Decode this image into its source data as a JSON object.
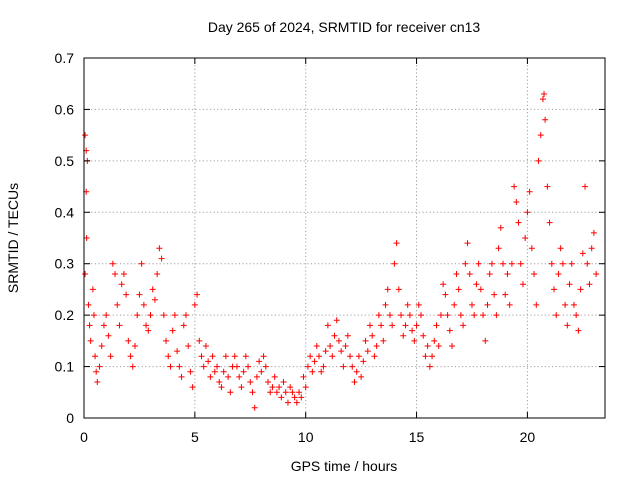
{
  "chart_data": {
    "type": "scatter",
    "title": "Day 265 of 2024, SRMTID for receiver cn13",
    "xlabel": "GPS time / hours",
    "ylabel": "SRMTID / TECUs",
    "xlim": [
      0,
      23.5
    ],
    "ylim": [
      0,
      0.7
    ],
    "xticks": [
      0,
      5,
      10,
      15,
      20
    ],
    "xtick_labels": [
      "0",
      "5",
      "10",
      "15",
      "20"
    ],
    "yticks": [
      0,
      0.1,
      0.2,
      0.3,
      0.4,
      0.5,
      0.6,
      0.7
    ],
    "ytick_labels": [
      "0",
      "0.1",
      "0.2",
      "0.3",
      "0.4",
      "0.5",
      "0.6",
      "0.7"
    ],
    "grid": true,
    "marker": "+",
    "series": [
      {
        "name": "SRMTID",
        "color": "#ff0000",
        "points": [
          [
            0.05,
            0.55
          ],
          [
            0.1,
            0.52
          ],
          [
            0.15,
            0.5
          ],
          [
            0.1,
            0.44
          ],
          [
            0.12,
            0.35
          ],
          [
            0.05,
            0.28
          ],
          [
            0.2,
            0.22
          ],
          [
            0.25,
            0.18
          ],
          [
            0.3,
            0.15
          ],
          [
            0.4,
            0.25
          ],
          [
            0.45,
            0.2
          ],
          [
            0.5,
            0.12
          ],
          [
            0.55,
            0.09
          ],
          [
            0.6,
            0.07
          ],
          [
            0.7,
            0.1
          ],
          [
            0.8,
            0.14
          ],
          [
            0.9,
            0.18
          ],
          [
            1.0,
            0.2
          ],
          [
            1.1,
            0.16
          ],
          [
            1.2,
            0.12
          ],
          [
            1.3,
            0.3
          ],
          [
            1.4,
            0.28
          ],
          [
            1.5,
            0.22
          ],
          [
            1.6,
            0.18
          ],
          [
            1.7,
            0.26
          ],
          [
            1.8,
            0.28
          ],
          [
            1.9,
            0.24
          ],
          [
            2.0,
            0.15
          ],
          [
            2.1,
            0.12
          ],
          [
            2.2,
            0.1
          ],
          [
            2.3,
            0.14
          ],
          [
            2.4,
            0.2
          ],
          [
            2.5,
            0.24
          ],
          [
            2.6,
            0.3
          ],
          [
            2.7,
            0.22
          ],
          [
            2.8,
            0.18
          ],
          [
            2.9,
            0.17
          ],
          [
            3.0,
            0.2
          ],
          [
            3.1,
            0.25
          ],
          [
            3.2,
            0.23
          ],
          [
            3.3,
            0.28
          ],
          [
            3.4,
            0.33
          ],
          [
            3.5,
            0.31
          ],
          [
            3.6,
            0.2
          ],
          [
            3.7,
            0.15
          ],
          [
            3.8,
            0.12
          ],
          [
            3.9,
            0.1
          ],
          [
            4.0,
            0.17
          ],
          [
            4.1,
            0.2
          ],
          [
            4.2,
            0.13
          ],
          [
            4.3,
            0.1
          ],
          [
            4.4,
            0.08
          ],
          [
            4.5,
            0.18
          ],
          [
            4.6,
            0.2
          ],
          [
            4.7,
            0.14
          ],
          [
            4.8,
            0.09
          ],
          [
            4.9,
            0.06
          ],
          [
            5.0,
            0.22
          ],
          [
            5.1,
            0.24
          ],
          [
            5.2,
            0.15
          ],
          [
            5.3,
            0.12
          ],
          [
            5.4,
            0.1
          ],
          [
            5.5,
            0.14
          ],
          [
            5.6,
            0.11
          ],
          [
            5.7,
            0.08
          ],
          [
            5.8,
            0.12
          ],
          [
            5.9,
            0.09
          ],
          [
            6.0,
            0.1
          ],
          [
            6.1,
            0.07
          ],
          [
            6.2,
            0.06
          ],
          [
            6.3,
            0.09
          ],
          [
            6.4,
            0.12
          ],
          [
            6.5,
            0.08
          ],
          [
            6.6,
            0.05
          ],
          [
            6.7,
            0.1
          ],
          [
            6.8,
            0.12
          ],
          [
            6.9,
            0.1
          ],
          [
            7.0,
            0.08
          ],
          [
            7.1,
            0.06
          ],
          [
            7.2,
            0.09
          ],
          [
            7.3,
            0.12
          ],
          [
            7.4,
            0.1
          ],
          [
            7.5,
            0.07
          ],
          [
            7.6,
            0.05
          ],
          [
            7.7,
            0.02
          ],
          [
            7.8,
            0.08
          ],
          [
            7.9,
            0.11
          ],
          [
            8.0,
            0.09
          ],
          [
            8.1,
            0.12
          ],
          [
            8.2,
            0.1
          ],
          [
            8.3,
            0.07
          ],
          [
            8.4,
            0.05
          ],
          [
            8.5,
            0.06
          ],
          [
            8.6,
            0.08
          ],
          [
            8.7,
            0.05
          ],
          [
            8.8,
            0.06
          ],
          [
            8.9,
            0.04
          ],
          [
            9.0,
            0.07
          ],
          [
            9.1,
            0.05
          ],
          [
            9.2,
            0.03
          ],
          [
            9.3,
            0.06
          ],
          [
            9.4,
            0.05
          ],
          [
            9.5,
            0.04
          ],
          [
            9.6,
            0.03
          ],
          [
            9.7,
            0.05
          ],
          [
            9.8,
            0.04
          ],
          [
            9.9,
            0.08
          ],
          [
            10.0,
            0.06
          ],
          [
            10.1,
            0.1
          ],
          [
            10.2,
            0.12
          ],
          [
            10.3,
            0.09
          ],
          [
            10.4,
            0.11
          ],
          [
            10.5,
            0.14
          ],
          [
            10.6,
            0.12
          ],
          [
            10.7,
            0.09
          ],
          [
            10.8,
            0.1
          ],
          [
            10.9,
            0.13
          ],
          [
            11.0,
            0.18
          ],
          [
            11.1,
            0.14
          ],
          [
            11.2,
            0.12
          ],
          [
            11.3,
            0.16
          ],
          [
            11.4,
            0.19
          ],
          [
            11.5,
            0.15
          ],
          [
            11.6,
            0.13
          ],
          [
            11.7,
            0.1
          ],
          [
            11.8,
            0.14
          ],
          [
            11.9,
            0.16
          ],
          [
            12.0,
            0.12
          ],
          [
            12.1,
            0.1
          ],
          [
            12.2,
            0.07
          ],
          [
            12.3,
            0.09
          ],
          [
            12.4,
            0.12
          ],
          [
            12.5,
            0.08
          ],
          [
            12.6,
            0.11
          ],
          [
            12.7,
            0.15
          ],
          [
            12.8,
            0.13
          ],
          [
            12.9,
            0.18
          ],
          [
            13.0,
            0.16
          ],
          [
            13.1,
            0.12
          ],
          [
            13.2,
            0.14
          ],
          [
            13.3,
            0.2
          ],
          [
            13.4,
            0.18
          ],
          [
            13.5,
            0.15
          ],
          [
            13.6,
            0.22
          ],
          [
            13.7,
            0.25
          ],
          [
            13.8,
            0.2
          ],
          [
            13.9,
            0.18
          ],
          [
            14.0,
            0.3
          ],
          [
            14.1,
            0.34
          ],
          [
            14.2,
            0.25
          ],
          [
            14.3,
            0.2
          ],
          [
            14.4,
            0.16
          ],
          [
            14.5,
            0.18
          ],
          [
            14.6,
            0.22
          ],
          [
            14.7,
            0.2
          ],
          [
            14.8,
            0.17
          ],
          [
            14.9,
            0.15
          ],
          [
            15.0,
            0.18
          ],
          [
            15.1,
            0.22
          ],
          [
            15.2,
            0.2
          ],
          [
            15.3,
            0.16
          ],
          [
            15.4,
            0.12
          ],
          [
            15.5,
            0.14
          ],
          [
            15.6,
            0.1
          ],
          [
            15.7,
            0.12
          ],
          [
            15.8,
            0.15
          ],
          [
            15.9,
            0.18
          ],
          [
            16.0,
            0.14
          ],
          [
            16.1,
            0.2
          ],
          [
            16.2,
            0.26
          ],
          [
            16.3,
            0.24
          ],
          [
            16.4,
            0.2
          ],
          [
            16.5,
            0.17
          ],
          [
            16.6,
            0.14
          ],
          [
            16.7,
            0.22
          ],
          [
            16.8,
            0.28
          ],
          [
            16.9,
            0.25
          ],
          [
            17.0,
            0.2
          ],
          [
            17.1,
            0.18
          ],
          [
            17.2,
            0.3
          ],
          [
            17.3,
            0.34
          ],
          [
            17.4,
            0.28
          ],
          [
            17.5,
            0.22
          ],
          [
            17.6,
            0.2
          ],
          [
            17.7,
            0.26
          ],
          [
            17.8,
            0.3
          ],
          [
            17.9,
            0.25
          ],
          [
            18.0,
            0.2
          ],
          [
            18.1,
            0.15
          ],
          [
            18.2,
            0.22
          ],
          [
            18.3,
            0.28
          ],
          [
            18.4,
            0.3
          ],
          [
            18.5,
            0.24
          ],
          [
            18.6,
            0.2
          ],
          [
            18.7,
            0.33
          ],
          [
            18.8,
            0.37
          ],
          [
            18.9,
            0.3
          ],
          [
            19.0,
            0.24
          ],
          [
            19.1,
            0.28
          ],
          [
            19.2,
            0.22
          ],
          [
            19.3,
            0.3
          ],
          [
            19.4,
            0.45
          ],
          [
            19.5,
            0.42
          ],
          [
            19.6,
            0.38
          ],
          [
            19.7,
            0.3
          ],
          [
            19.8,
            0.26
          ],
          [
            19.9,
            0.35
          ],
          [
            20.0,
            0.4
          ],
          [
            20.1,
            0.44
          ],
          [
            20.2,
            0.33
          ],
          [
            20.3,
            0.28
          ],
          [
            20.4,
            0.22
          ],
          [
            20.5,
            0.5
          ],
          [
            20.6,
            0.55
          ],
          [
            20.7,
            0.62
          ],
          [
            20.75,
            0.63
          ],
          [
            20.8,
            0.58
          ],
          [
            20.9,
            0.45
          ],
          [
            21.0,
            0.38
          ],
          [
            21.1,
            0.3
          ],
          [
            21.2,
            0.25
          ],
          [
            21.3,
            0.2
          ],
          [
            21.4,
            0.28
          ],
          [
            21.5,
            0.33
          ],
          [
            21.6,
            0.3
          ],
          [
            21.7,
            0.22
          ],
          [
            21.8,
            0.18
          ],
          [
            21.9,
            0.26
          ],
          [
            22.0,
            0.3
          ],
          [
            22.1,
            0.22
          ],
          [
            22.2,
            0.2
          ],
          [
            22.3,
            0.17
          ],
          [
            22.4,
            0.25
          ],
          [
            22.5,
            0.32
          ],
          [
            22.6,
            0.45
          ],
          [
            22.7,
            0.3
          ],
          [
            22.8,
            0.26
          ],
          [
            22.9,
            0.33
          ],
          [
            23.0,
            0.36
          ],
          [
            23.1,
            0.28
          ]
        ]
      }
    ]
  }
}
